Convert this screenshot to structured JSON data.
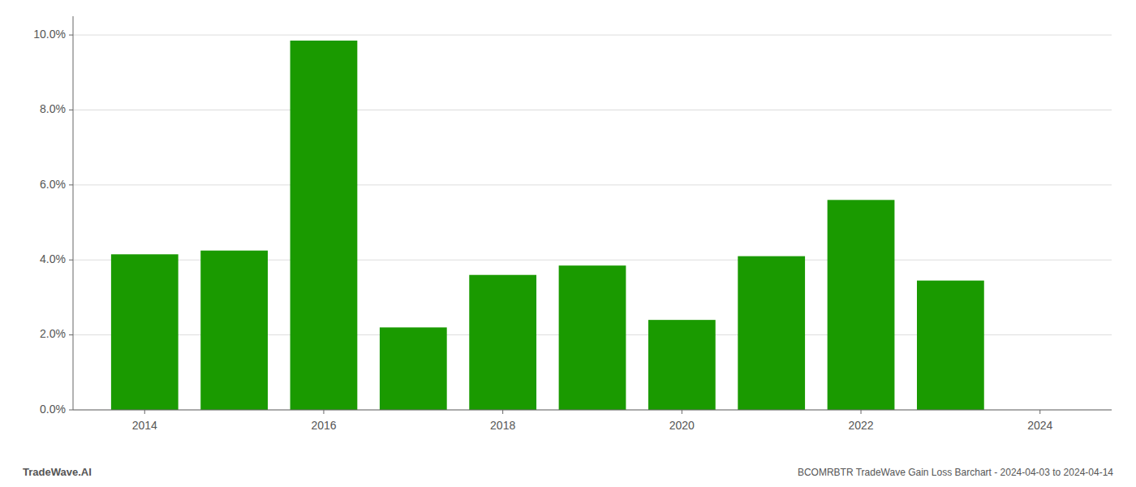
{
  "chart_data": {
    "type": "bar",
    "title": "BCOMRBTR TradeWave Gain Loss Barchart - 2024-04-03 to 2024-04-14",
    "annotations": [
      "TradeWave.AI"
    ],
    "x": [
      2014,
      2015,
      2016,
      2017,
      2018,
      2019,
      2020,
      2021,
      2022,
      2023
    ],
    "values": [
      0.0415,
      0.0425,
      0.0985,
      0.022,
      0.036,
      0.0385,
      0.024,
      0.041,
      0.056,
      0.0345
    ],
    "color": "#1a9a00",
    "xlim": [
      2013.2,
      2024.8
    ],
    "xticks": [
      2014,
      2016,
      2018,
      2020,
      2022,
      2024
    ],
    "ylim": [
      0,
      0.105
    ],
    "yticks": [
      {
        "value": 0.0,
        "label": "0.0%"
      },
      {
        "value": 0.02,
        "label": "2.0%"
      },
      {
        "value": 0.04,
        "label": "4.0%"
      },
      {
        "value": 0.06,
        "label": "6.0%"
      },
      {
        "value": 0.08,
        "label": "8.0%"
      },
      {
        "value": 0.1,
        "label": "10.0%"
      }
    ],
    "grid": true
  }
}
